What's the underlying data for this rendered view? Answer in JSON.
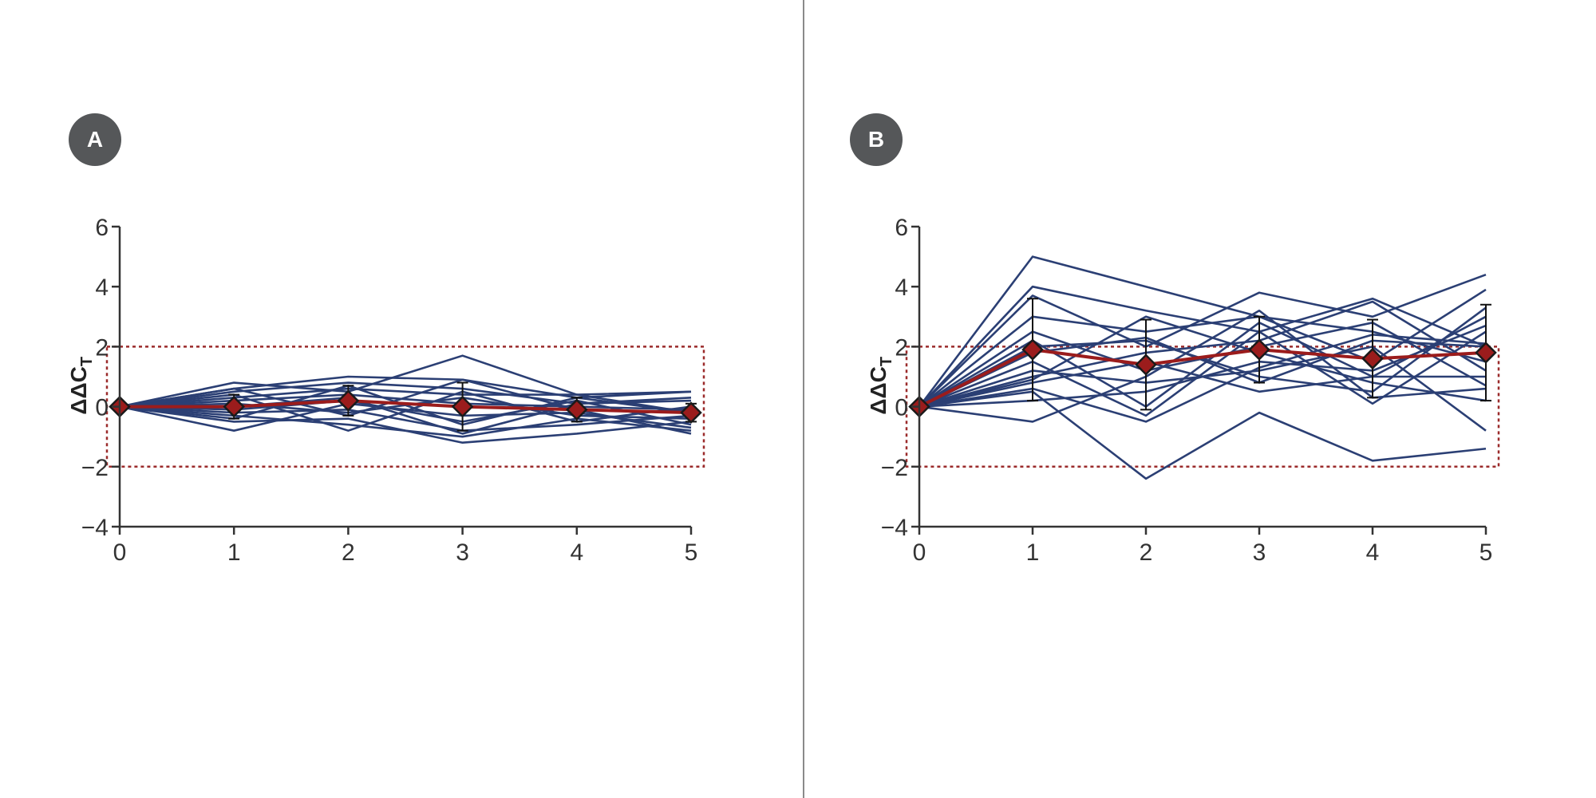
{
  "panels": [
    {
      "label": "A"
    },
    {
      "label": "B"
    }
  ],
  "chart_data": [
    {
      "type": "line",
      "panel": "A",
      "ylabel": "ΔΔCT",
      "ylabel_main": "ΔΔC",
      "ylabel_sub": "T",
      "x": [
        0,
        1,
        2,
        3,
        4,
        5
      ],
      "xticks": [
        "0",
        "1",
        "2",
        "3",
        "4",
        "5"
      ],
      "yticks": [
        "6",
        "4",
        "2",
        "0",
        "−2",
        "−4"
      ],
      "ytick_values": [
        6,
        4,
        2,
        0,
        -2,
        -4
      ],
      "xlim": [
        0,
        5
      ],
      "ylim": [
        -4,
        6
      ],
      "band": [
        -2,
        2
      ],
      "colors": {
        "lines": "#2b3f74",
        "mean": "#9b1c1c",
        "band": "#9b2b2b",
        "axis": "#333333"
      },
      "mean": [
        0,
        0.0,
        0.2,
        0.0,
        -0.1,
        -0.2
      ],
      "error": [
        0,
        0.4,
        0.5,
        0.8,
        0.4,
        0.3
      ],
      "series": [
        {
          "values": [
            0,
            0.8,
            0.5,
            1.7,
            0.4,
            0.5
          ]
        },
        {
          "values": [
            0,
            0.6,
            1.0,
            0.9,
            0.3,
            0.5
          ]
        },
        {
          "values": [
            0,
            0.5,
            0.8,
            0.6,
            0.1,
            0.2
          ]
        },
        {
          "values": [
            0,
            0.3,
            0.6,
            0.4,
            0.4,
            -0.2
          ]
        },
        {
          "values": [
            0,
            0.2,
            0.4,
            0.1,
            0.0,
            -0.1
          ]
        },
        {
          "values": [
            0,
            0.1,
            -0.2,
            0.3,
            -0.3,
            -0.4
          ]
        },
        {
          "values": [
            0,
            -0.1,
            0.2,
            -0.5,
            0.2,
            -0.6
          ]
        },
        {
          "values": [
            0,
            -0.2,
            -0.1,
            -0.8,
            -0.6,
            -0.3
          ]
        },
        {
          "values": [
            0,
            -0.3,
            -0.6,
            -1.0,
            -0.4,
            -0.8
          ]
        },
        {
          "values": [
            0,
            -0.5,
            -0.4,
            -1.2,
            -0.9,
            -0.5
          ]
        },
        {
          "values": [
            0,
            -0.8,
            0.1,
            -0.3,
            -0.2,
            -0.7
          ]
        },
        {
          "values": [
            0,
            0.4,
            -0.8,
            0.5,
            -0.5,
            0.0
          ]
        },
        {
          "values": [
            0,
            -0.4,
            0.7,
            -0.6,
            0.3,
            -0.2
          ]
        },
        {
          "values": [
            0,
            0.6,
            -0.3,
            0.9,
            -0.1,
            -0.9
          ]
        },
        {
          "values": [
            0,
            0.0,
            0.3,
            -0.9,
            0.1,
            0.3
          ]
        }
      ]
    },
    {
      "type": "line",
      "panel": "B",
      "ylabel": "ΔΔCT",
      "ylabel_main": "ΔΔC",
      "ylabel_sub": "T",
      "x": [
        0,
        1,
        2,
        3,
        4,
        5
      ],
      "xticks": [
        "0",
        "1",
        "2",
        "3",
        "4",
        "5"
      ],
      "yticks": [
        "6",
        "4",
        "2",
        "0",
        "−2",
        "−4"
      ],
      "ytick_values": [
        6,
        4,
        2,
        0,
        -2,
        -4
      ],
      "xlim": [
        0,
        5
      ],
      "ylim": [
        -4,
        6
      ],
      "band": [
        -2,
        2
      ],
      "colors": {
        "lines": "#2b3f74",
        "mean": "#9b1c1c",
        "band": "#9b2b2b",
        "axis": "#333333"
      },
      "mean": [
        0,
        1.9,
        1.4,
        1.9,
        1.6,
        1.8
      ],
      "error": [
        0,
        1.7,
        1.5,
        1.1,
        1.3,
        1.6
      ],
      "series": [
        {
          "values": [
            0,
            5.0,
            4.0,
            3.0,
            2.5,
            1.5
          ]
        },
        {
          "values": [
            0,
            4.0,
            3.2,
            2.5,
            3.6,
            2.0
          ]
        },
        {
          "values": [
            0,
            3.7,
            2.0,
            3.8,
            3.0,
            4.4
          ]
        },
        {
          "values": [
            0,
            3.0,
            2.5,
            3.0,
            1.5,
            3.9
          ]
        },
        {
          "values": [
            0,
            2.5,
            1.2,
            2.0,
            2.8,
            0.7
          ]
        },
        {
          "values": [
            0,
            2.0,
            2.2,
            1.0,
            0.5,
            3.3
          ]
        },
        {
          "values": [
            0,
            1.5,
            -0.3,
            2.5,
            0.1,
            2.5
          ]
        },
        {
          "values": [
            0,
            1.2,
            0.8,
            1.2,
            2.0,
            -0.8
          ]
        },
        {
          "values": [
            0,
            0.8,
            1.5,
            0.5,
            1.0,
            1.0
          ]
        },
        {
          "values": [
            0,
            0.5,
            -2.4,
            -0.2,
            -1.8,
            -1.4
          ]
        },
        {
          "values": [
            0,
            0.2,
            0.5,
            1.5,
            1.2,
            2.7
          ]
        },
        {
          "values": [
            0,
            -0.5,
            1.0,
            3.2,
            0.3,
            0.6
          ]
        },
        {
          "values": [
            0,
            1.8,
            2.3,
            0.8,
            2.2,
            2.0
          ]
        },
        {
          "values": [
            0,
            2.2,
            0.0,
            2.8,
            1.0,
            3.0
          ]
        },
        {
          "values": [
            0,
            0.9,
            3.0,
            1.8,
            0.8,
            0.2
          ]
        },
        {
          "values": [
            0,
            1.0,
            1.8,
            2.2,
            3.5,
            1.2
          ]
        },
        {
          "values": [
            0,
            0.6,
            -0.5,
            1.3,
            2.4,
            2.1
          ]
        }
      ]
    }
  ]
}
